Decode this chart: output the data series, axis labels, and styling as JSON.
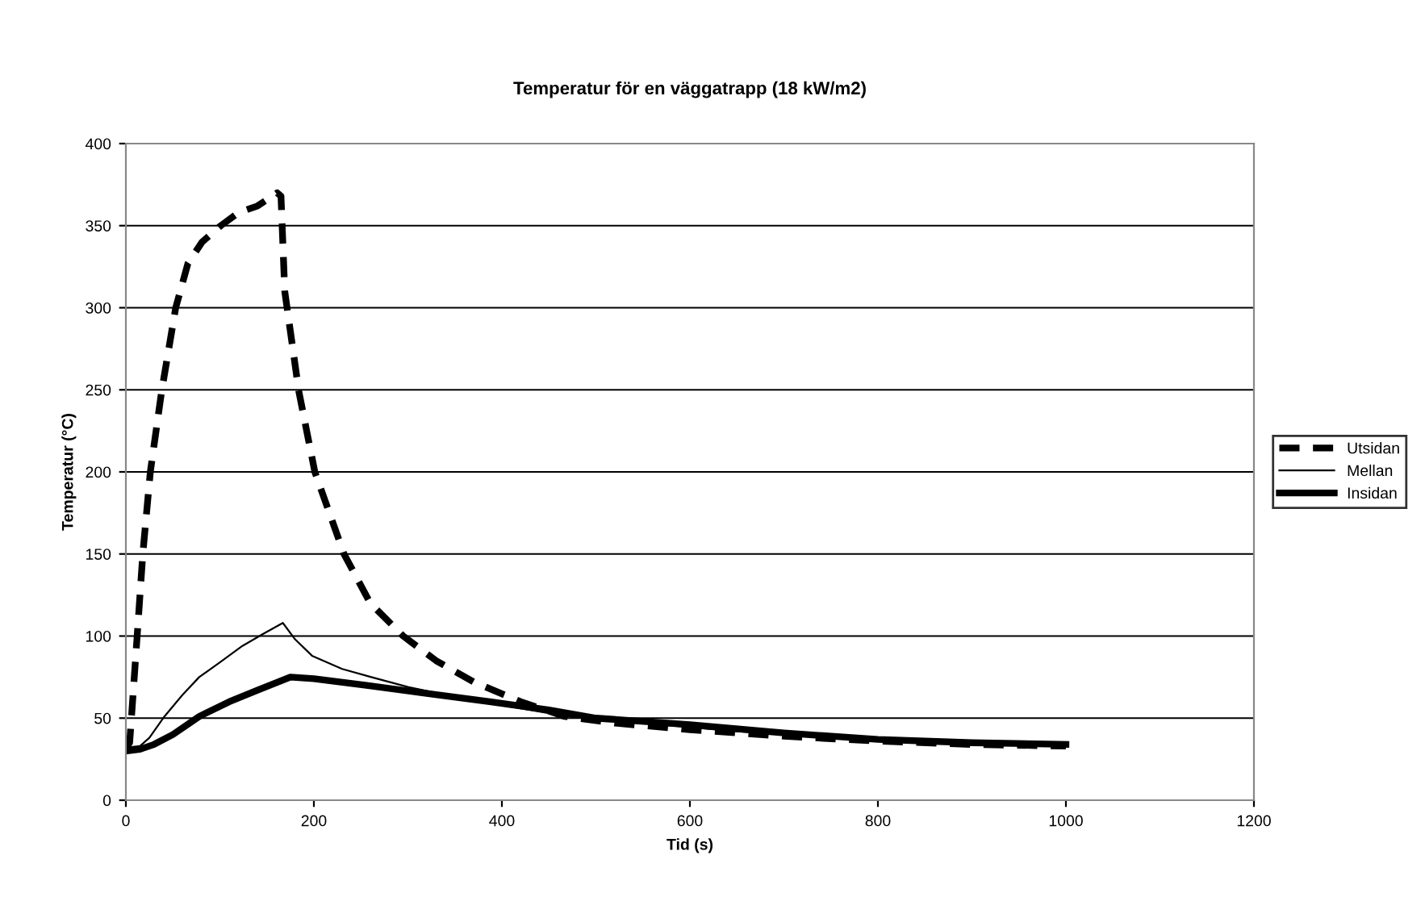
{
  "chart_data": {
    "type": "line",
    "title": "Temperatur för en väggatrapp (18 kW/m2)",
    "xlabel": "Tid (s)",
    "ylabel": "Temperatur (°C)",
    "xlim": [
      0,
      1200
    ],
    "xticks": [
      0,
      200,
      400,
      600,
      800,
      1000,
      1200
    ],
    "ylim": [
      0,
      400
    ],
    "yticks": [
      0,
      50,
      100,
      150,
      200,
      250,
      300,
      350,
      400
    ],
    "grid": "y",
    "legend": "right",
    "marker": "none",
    "series": [
      {
        "name": "Utsidan",
        "color": "#000000",
        "line_style": "dashed",
        "x": [
          0,
          4,
          6,
          12,
          18,
          26,
          38,
          53,
          66,
          81,
          101,
          120,
          140,
          161,
          165,
          169,
          184,
          201,
          232,
          260,
          295,
          330,
          370,
          420,
          467,
          520,
          600,
          700,
          800,
          900,
          1000
        ],
        "values": [
          32,
          35,
          51,
          100,
          150,
          200,
          249,
          300,
          327,
          340,
          350,
          358,
          362,
          370,
          368,
          310,
          249,
          200,
          150,
          120,
          100,
          85,
          72,
          60,
          51,
          47,
          43,
          39,
          36,
          34,
          33
        ]
      },
      {
        "name": "Mellan",
        "color": "#000000",
        "line_style": "solid",
        "x": [
          0,
          15,
          25,
          41,
          60,
          78,
          100,
          124,
          145,
          167,
          180,
          198,
          230,
          261,
          300,
          358,
          420,
          470,
          550,
          650,
          750,
          850,
          1000
        ],
        "values": [
          32,
          33,
          38,
          51,
          64,
          75,
          84,
          94,
          101,
          108,
          98,
          88,
          80,
          75,
          69,
          62,
          56,
          51,
          47,
          42,
          39,
          36,
          34
        ]
      },
      {
        "name": "Insidan",
        "color": "#000000",
        "line_style": "solid",
        "x": [
          0,
          15,
          30,
          50,
          78,
          110,
          140,
          175,
          200,
          256,
          320,
          387,
          450,
          500,
          600,
          700,
          800,
          900,
          1000
        ],
        "values": [
          30,
          31,
          34,
          40,
          51,
          60,
          67,
          75,
          74,
          70,
          65,
          60,
          55,
          50,
          46,
          41,
          37,
          35,
          34
        ]
      }
    ]
  }
}
